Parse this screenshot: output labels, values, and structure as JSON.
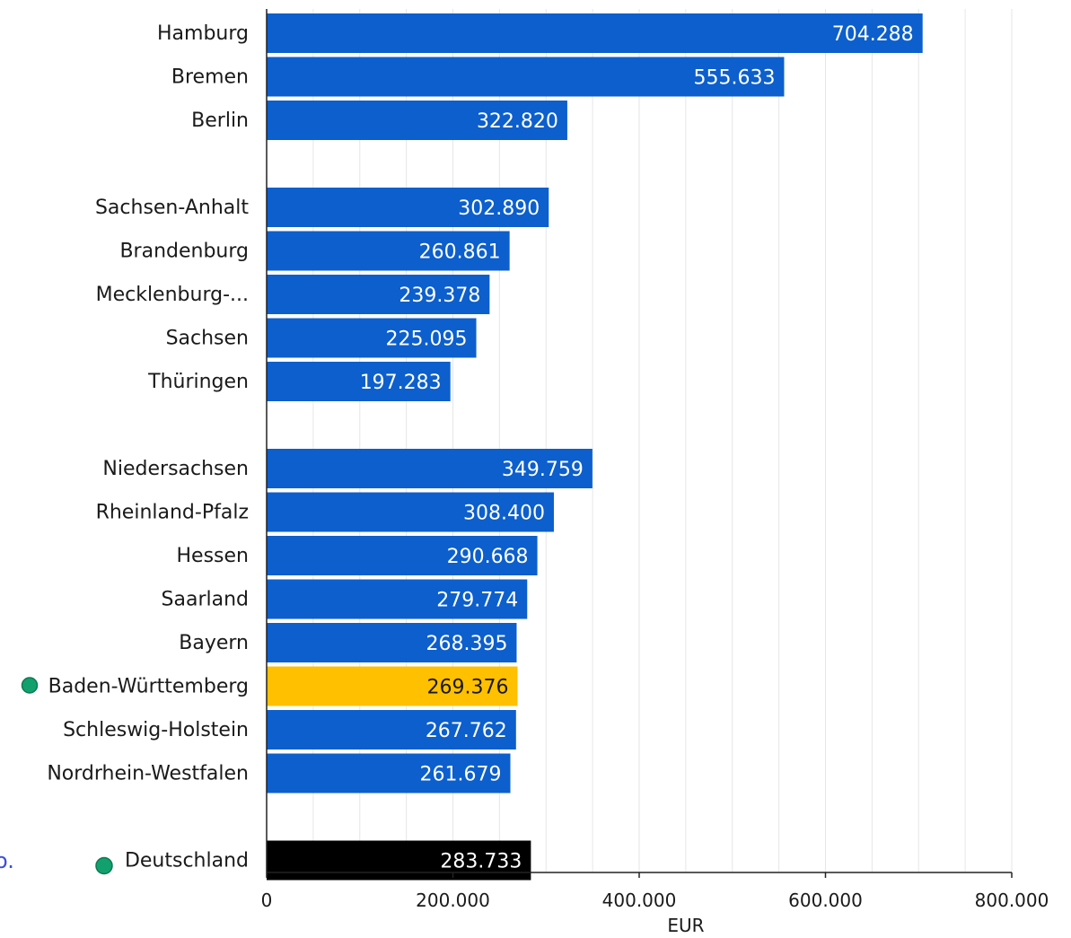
{
  "chart_data": {
    "type": "bar",
    "orientation": "horizontal",
    "xlabel": "EUR",
    "xlim": [
      0,
      800000
    ],
    "xticks": [
      0,
      200000,
      400000,
      600000,
      800000
    ],
    "xtick_labels": [
      "0",
      "200.000",
      "400.000",
      "600.000",
      "800.000"
    ],
    "grid": true,
    "groups": [
      {
        "categories": [
          "Hamburg",
          "Bremen",
          "Berlin"
        ],
        "values": [
          704288,
          555633,
          322820
        ],
        "value_labels": [
          "704.288",
          "555.633",
          "322.820"
        ]
      },
      {
        "categories": [
          "Sachsen-Anhalt",
          "Brandenburg",
          "Mecklenburg-...",
          "Sachsen",
          "Thüringen"
        ],
        "values": [
          302890,
          260861,
          239378,
          225095,
          197283
        ],
        "value_labels": [
          "302.890",
          "260.861",
          "239.378",
          "225.095",
          "197.283"
        ]
      },
      {
        "categories": [
          "Niedersachsen",
          "Rheinland-Pfalz",
          "Hessen",
          "Saarland",
          "Bayern",
          "Baden-Württemberg",
          "Schleswig-Holstein",
          "Nordrhein-Westfalen"
        ],
        "values": [
          349759,
          308400,
          290668,
          279774,
          268395,
          269376,
          267762,
          261679
        ],
        "value_labels": [
          "349.759",
          "308.400",
          "290.668",
          "279.774",
          "268.395",
          "269.376",
          "267.762",
          "261.679"
        ]
      },
      {
        "categories": [
          "Deutschland"
        ],
        "values": [
          283733
        ],
        "value_labels": [
          "283.733"
        ]
      }
    ],
    "highlighted": [
      "Baden-Württemberg",
      "Deutschland"
    ],
    "colors": {
      "default_bar": "#0c5fcc",
      "highlight_bar": "#ffc000",
      "total_bar": "#000000",
      "marker_dot": "#12a06e",
      "grid": "#e6e6e6"
    }
  },
  "stray_text": "o."
}
